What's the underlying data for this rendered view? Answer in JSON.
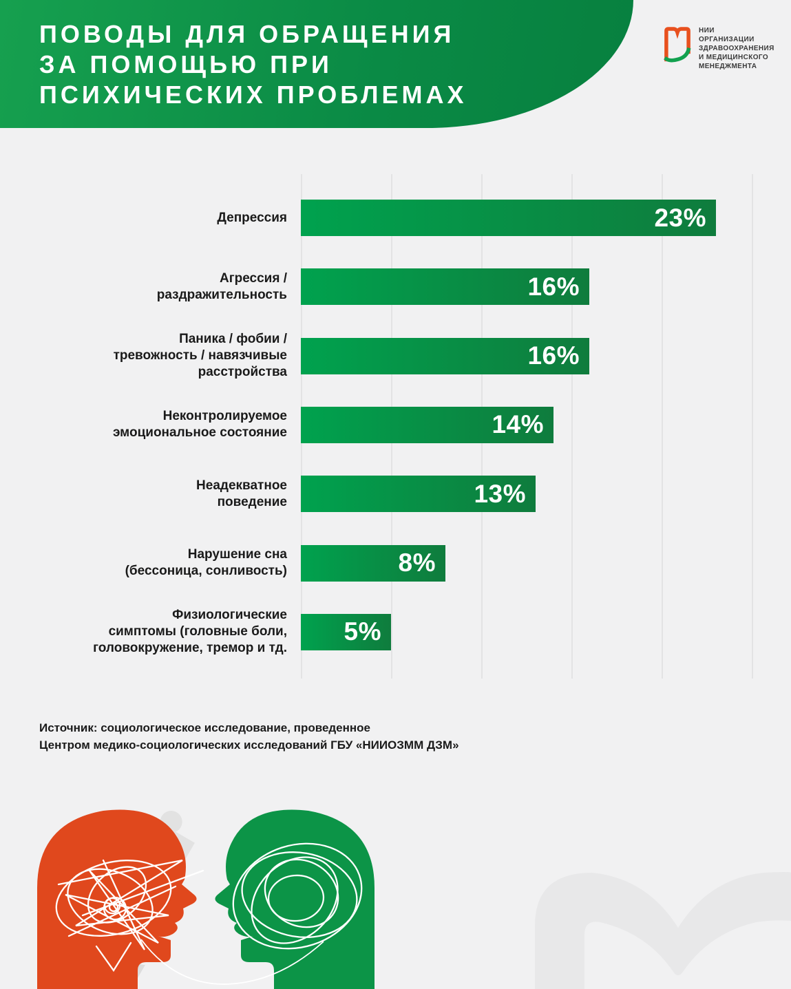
{
  "header": {
    "title": "ПОВОДЫ ДЛЯ ОБРАЩЕНИЯ\nЗА ПОМОЩЬЮ ПРИ\nПСИХИЧЕСКИХ ПРОБЛЕМАХ"
  },
  "logo": {
    "org_name": "НИИ\nОРГАНИЗАЦИИ\nЗДРАВООХРАНЕНИЯ\nИ МЕДИЦИНСКОГО\nМЕНЕДЖМЕНТА"
  },
  "chart_data": {
    "type": "bar",
    "orientation": "horizontal",
    "categories": [
      "Депрессия",
      "Агрессия /\nраздражительность",
      "Паника / фобии /\nтревожность / навязчивые\nрасстройства",
      "Неконтролируемое\nэмоциональное состояние",
      "Неадекватное\nповедение",
      "Нарушение сна\n(бессоница, сонливость)",
      "Физиологические\nсимптомы (головные боли,\nголовокружение, тремор и тд."
    ],
    "values": [
      23,
      16,
      16,
      14,
      13,
      8,
      5
    ],
    "unit": "%",
    "xlim": [
      0,
      25
    ],
    "gridline_step": 5,
    "grid": true,
    "legend": "none",
    "value_labels": "inside-end"
  },
  "source": {
    "text": "Источник: социологическое исследование, проведенное\nЦентром медико-социологических исследований ГБУ «НИИОЗММ ДЗМ»"
  },
  "colors": {
    "banner_green_start": "#16A04F",
    "banner_green_end": "#07803F",
    "bar_green_start": "#00A24E",
    "bar_green_end": "#0F7C3D",
    "head_orange": "#E0481D",
    "head_green": "#0C9447",
    "logo_orange": "#E8501E",
    "logo_green": "#12A14F",
    "background": "#F1F1F2"
  }
}
